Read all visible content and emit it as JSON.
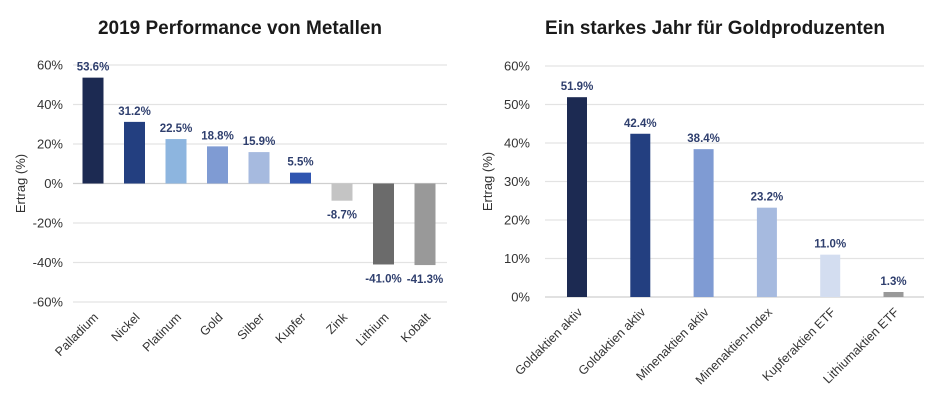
{
  "chart_data": [
    {
      "type": "bar",
      "title": "2019 Performance von Metallen",
      "ylabel": "Ertrag (%)",
      "xlabel": "",
      "ylim": [
        -60,
        60
      ],
      "yticks": [
        60,
        40,
        20,
        0,
        -20,
        -40,
        -60
      ],
      "tick_format": "%",
      "grid": true,
      "categories": [
        "Palladium",
        "Nickel",
        "Platinum",
        "Gold",
        "Silber",
        "Kupfer",
        "Zink",
        "Lithium",
        "Kobalt"
      ],
      "values": [
        53.6,
        31.2,
        22.5,
        18.8,
        15.9,
        5.5,
        -8.7,
        -41.0,
        -41.3
      ],
      "data_labels": [
        "53.6%",
        "31.2%",
        "22.5%",
        "18.8%",
        "15.9%",
        "5.5%",
        "-8.7%",
        "-41.0%",
        "-41.3%"
      ],
      "colors": [
        "#1c2a52",
        "#233f80",
        "#8db5df",
        "#7f9bd3",
        "#a6badf",
        "#2f55b0",
        "#c4c4c4",
        "#6b6b6b",
        "#999999"
      ]
    },
    {
      "type": "bar",
      "title": "Ein starkes Jahr für Goldproduzenten",
      "ylabel": "Ertrag (%)",
      "xlabel": "",
      "ylim": [
        0,
        60
      ],
      "yticks": [
        60,
        50,
        40,
        30,
        20,
        10,
        0
      ],
      "tick_format": "%",
      "grid": true,
      "categories": [
        "Goldaktien aktiv",
        "Goldaktien aktiv",
        "Minenaktien aktiv",
        "Minenaktien-Index",
        "Kupferaktien ETF",
        "Lithiumaktien ETF"
      ],
      "values": [
        51.9,
        42.4,
        38.4,
        23.2,
        11.0,
        1.3
      ],
      "data_labels": [
        "51.9%",
        "42.4%",
        "38.4%",
        "23.2%",
        "11.0%",
        "1.3%"
      ],
      "colors": [
        "#1c2a52",
        "#233f80",
        "#7f9bd3",
        "#a6badf",
        "#d3ddf0",
        "#999999"
      ]
    }
  ],
  "label_color": "#2f3f6e"
}
